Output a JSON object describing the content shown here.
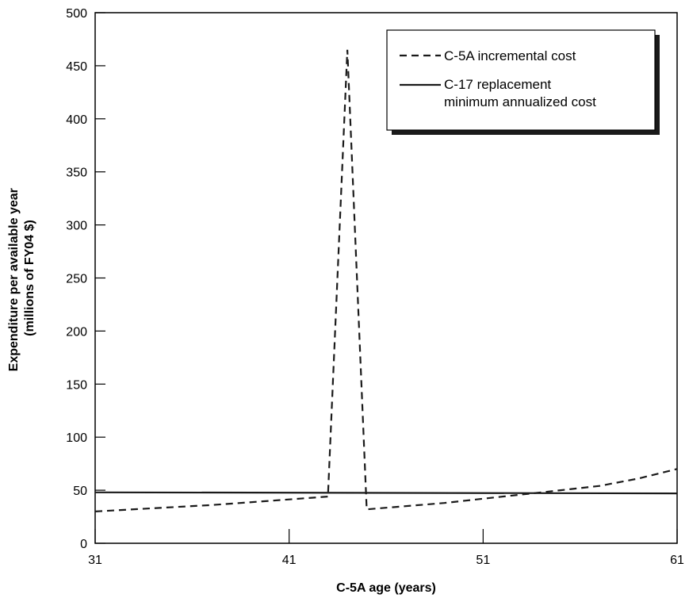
{
  "chart_data": {
    "type": "line",
    "title": "",
    "xlabel": "C-5A age (years)",
    "ylabel_lines": [
      "Expenditure per available year",
      "(millions of FY04 $)"
    ],
    "xlim": [
      31,
      61
    ],
    "ylim": [
      0,
      500
    ],
    "x_ticks": [
      31,
      41,
      51,
      61
    ],
    "y_ticks": [
      0,
      50,
      100,
      150,
      200,
      250,
      300,
      350,
      400,
      450,
      500
    ],
    "grid": false,
    "legend_position": "top-right",
    "series": [
      {
        "name": "C-5A incremental cost",
        "style": "dashed",
        "points": [
          [
            31,
            30
          ],
          [
            34,
            33
          ],
          [
            37,
            36
          ],
          [
            40,
            40
          ],
          [
            43,
            44
          ],
          [
            44,
            465
          ],
          [
            45,
            32
          ],
          [
            47,
            35
          ],
          [
            49,
            38
          ],
          [
            51,
            42
          ],
          [
            53,
            46
          ],
          [
            55,
            50
          ],
          [
            57,
            54
          ],
          [
            59,
            61
          ],
          [
            61,
            70
          ]
        ]
      },
      {
        "name": "C-17 replacement minimum annualized cost",
        "name_lines": [
          "C-17 replacement",
          "minimum annualized cost"
        ],
        "style": "solid",
        "points": [
          [
            31,
            48
          ],
          [
            61,
            47
          ]
        ]
      }
    ]
  },
  "colors": {
    "line": "#1a1a1a",
    "axis": "#000000",
    "background": "#ffffff"
  }
}
